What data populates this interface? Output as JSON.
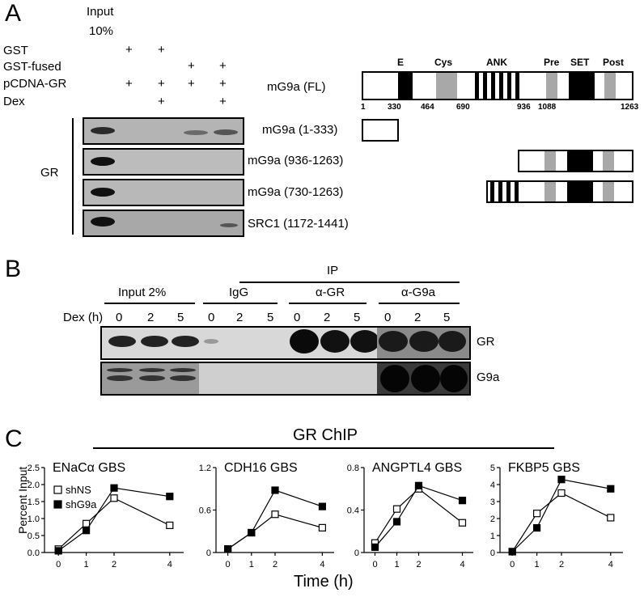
{
  "panelA": {
    "letter": "A",
    "input_label_1": "Input",
    "input_label_2": "10%",
    "row_labels": [
      "GST",
      "GST-fused",
      "pCDNA-GR",
      "Dex"
    ],
    "plus": "+",
    "gr_label": "GR",
    "blot_labels": [
      "mG9a (1-333)",
      "mG9a (936-1263)",
      "mG9a (730-1263)",
      "SRC1 (1172-1441)"
    ],
    "fl_label": "mG9a (FL)",
    "domains": [
      "E",
      "Cys",
      "ANK",
      "Pre",
      "SET",
      "Post"
    ],
    "positions": [
      "1",
      "330",
      "464",
      "690",
      "936",
      "1088",
      "1263"
    ]
  },
  "panelB": {
    "letter": "B",
    "ip_label": "IP",
    "groups": [
      "Input 2%",
      "IgG",
      "α-GR",
      "α-G9a"
    ],
    "dex_label": "Dex (h)",
    "times": [
      "0",
      "2",
      "5"
    ],
    "row_labels": [
      "GR",
      "G9a"
    ]
  },
  "panelC": {
    "letter": "C",
    "header": "GR ChIP",
    "ylabel": "Percent Input",
    "xlabel": "Time (h)",
    "legend": [
      "shNS",
      "shG9a"
    ]
  },
  "chart_data": [
    {
      "type": "line",
      "title": "ENaCα GBS",
      "x": [
        0,
        1,
        2,
        4
      ],
      "ylim": [
        0,
        2.5
      ],
      "yticks": [
        "0.0",
        "0.5",
        "1.0",
        "1.5",
        "2.0",
        "2.5"
      ],
      "series": [
        {
          "name": "shNS",
          "values": [
            0.1,
            0.85,
            1.6,
            0.8
          ]
        },
        {
          "name": "shG9a",
          "values": [
            0.05,
            0.65,
            1.9,
            1.65
          ]
        }
      ]
    },
    {
      "type": "line",
      "title": "CDH16 GBS",
      "x": [
        0,
        1,
        2,
        4
      ],
      "ylim": [
        0,
        1.2
      ],
      "yticks": [
        "0",
        "0.6",
        "1.2"
      ],
      "series": [
        {
          "name": "shNS",
          "values": [
            0.05,
            0.28,
            0.54,
            0.35
          ]
        },
        {
          "name": "shG9a",
          "values": [
            0.05,
            0.28,
            0.88,
            0.65
          ]
        }
      ]
    },
    {
      "type": "line",
      "title": "ANGPTL4 GBS",
      "x": [
        0,
        1,
        2,
        4
      ],
      "ylim": [
        0,
        0.8
      ],
      "yticks": [
        "0",
        "0.4",
        "0.8"
      ],
      "series": [
        {
          "name": "shNS",
          "values": [
            0.09,
            0.41,
            0.6,
            0.28
          ]
        },
        {
          "name": "shG9a",
          "values": [
            0.05,
            0.29,
            0.63,
            0.49
          ]
        }
      ]
    },
    {
      "type": "line",
      "title": "FKBP5 GBS",
      "x": [
        0,
        1,
        2,
        4
      ],
      "ylim": [
        0,
        5
      ],
      "yticks": [
        "0",
        "1",
        "2",
        "3",
        "4",
        "5"
      ],
      "series": [
        {
          "name": "shNS",
          "values": [
            0.05,
            2.3,
            3.5,
            2.05
          ]
        },
        {
          "name": "shG9a",
          "values": [
            0.05,
            1.45,
            4.3,
            3.75
          ]
        }
      ]
    }
  ]
}
